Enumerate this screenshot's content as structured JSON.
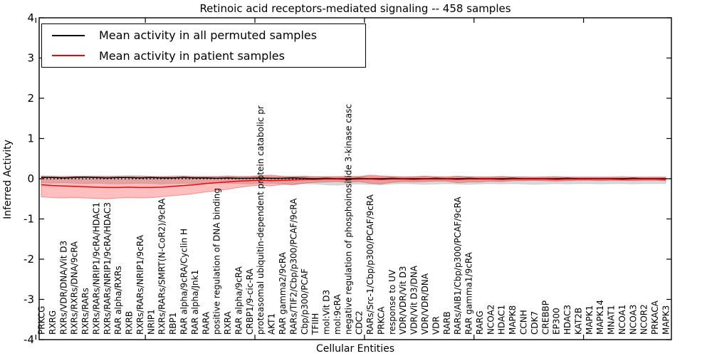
{
  "chart_data": {
    "type": "line",
    "title": "Retinoic acid receptors-mediated signaling -- 458 samples",
    "xlabel": "Cellular Entities",
    "ylabel": "Inferred Activity",
    "ylim": [
      -4,
      4
    ],
    "yticks": [
      4,
      3,
      2,
      1,
      0,
      -1,
      -2,
      -3,
      -4
    ],
    "grid": false,
    "legend_position": "upper left",
    "x_major_tick_every": 10,
    "categories": [
      "PRKCG",
      "RXRG",
      "RXRs/VDR/DNA/Vit D3",
      "RXRs/RXRs/DNA/9cRA",
      "RXRs/RARs",
      "RXRs/RARs/NRIP1/9cRA/HDAC1",
      "RXRs/RARs/NRIP1/9cRA/HDAC3",
      "RAR alpha/RXRs",
      "RXRB",
      "RXRs/RARs/NRIP1/9cRA",
      "NRIP1",
      "RXRs/RARs/SMRT(N-CoR2)/9cRA",
      "RBP1",
      "RAR alpha/9cRA/Cyclin H",
      "RAR alpha/Jnk1",
      "RARA",
      "positive regulation of DNA binding",
      "RXRA",
      "RAR alpha/9cRA",
      "CRBP1/9-cic-RA",
      "proteasomal ubiquitin-dependent protein catabolic pr",
      "AKT1",
      "RAR gamma2/9cRA",
      "RARs/TIF2/Cbp/p300/PCAF/9cRA",
      "Cbp/p300/PCAF",
      "TFIIH",
      "mol:Vit D3",
      "mol:9cRA",
      "negative regulation of phosphoinositide 3-kinase casc",
      "CDC2",
      "RARs/Src-1/Cbp/p300/PCAF/9cRA",
      "PRKCA",
      "response to UV",
      "VDR/VDR/Vit D3",
      "VDR/Vit D3/DNA",
      "VDR/VDR/DNA",
      "VDR",
      "RARB",
      "RARs/AIB1/Cbp/p300/PCAF/9cRA",
      "RAR gamma1/9cRA",
      "RARG",
      "NCOA2",
      "HDAC1",
      "MAPK8",
      "CCNH",
      "CDK7",
      "CREBBP",
      "EP300",
      "HDAC3",
      "KAT2B",
      "MAPK1",
      "MAPK14",
      "MNAT1",
      "NCOA1",
      "NCOA3",
      "NCOR2",
      "PRKACA",
      "MAPK3"
    ],
    "series": [
      {
        "name": "Mean activity in all permuted samples",
        "color": "#000000",
        "style": "solid",
        "values": [
          0.03,
          0.03,
          0.02,
          0.03,
          0.04,
          0.03,
          0.02,
          0.03,
          0.03,
          0.02,
          0.03,
          0.02,
          0.02,
          0.03,
          0.02,
          0.02,
          0.01,
          0.02,
          0.01,
          0.01,
          0.02,
          0.01,
          0.01,
          0.02,
          0.01,
          0.0,
          0.01,
          0.0,
          0.0,
          0.01,
          0.0,
          0.0,
          0.01,
          0.0,
          0.0,
          0.0,
          0.01,
          0.0,
          0.0,
          0.01,
          0.0,
          0.0,
          0.0,
          0.01,
          0.0,
          0.0,
          0.0,
          0.0,
          0.01,
          0.0,
          0.0,
          0.0,
          0.0,
          0.0,
          0.01,
          0.0,
          0.0,
          0.0
        ]
      },
      {
        "name": "Mean activity in patient samples",
        "color": "#ff0000",
        "style": "solid",
        "values": [
          -0.15,
          -0.17,
          -0.18,
          -0.19,
          -0.2,
          -0.21,
          -0.22,
          -0.22,
          -0.21,
          -0.22,
          -0.22,
          -0.21,
          -0.19,
          -0.17,
          -0.15,
          -0.12,
          -0.1,
          -0.08,
          -0.06,
          -0.05,
          -0.04,
          -0.05,
          -0.04,
          -0.03,
          -0.02,
          -0.02,
          -0.01,
          -0.01,
          -0.02,
          -0.01,
          -0.01,
          -0.02,
          -0.01,
          -0.01,
          -0.02,
          -0.01,
          -0.01,
          -0.01,
          -0.02,
          -0.01,
          -0.01,
          -0.01,
          -0.02,
          -0.01,
          -0.01,
          -0.01,
          -0.01,
          -0.02,
          -0.01,
          -0.01,
          -0.01,
          -0.01,
          -0.01,
          -0.02,
          -0.01,
          -0.01,
          -0.01,
          -0.02
        ]
      }
    ],
    "zero_line": {
      "style": "dashed",
      "color": "#000000",
      "value": 0
    },
    "bands": [
      {
        "name": "permuted samples range",
        "color": "#bfbfbf",
        "opacity": 0.6,
        "upper": [
          0.07,
          0.07,
          0.06,
          0.06,
          0.07,
          0.07,
          0.06,
          0.07,
          0.08,
          0.07,
          0.06,
          0.06,
          0.07,
          0.07,
          0.06,
          0.06,
          0.06,
          0.07,
          0.06,
          0.06,
          0.07,
          0.06,
          0.05,
          0.06,
          0.06,
          0.05,
          0.06,
          0.05,
          0.05,
          0.06,
          0.06,
          0.05,
          0.06,
          0.05,
          0.05,
          0.06,
          0.05,
          0.05,
          0.06,
          0.05,
          0.05,
          0.05,
          0.06,
          0.05,
          0.05,
          0.05,
          0.05,
          0.06,
          0.05,
          0.05,
          0.05,
          0.05,
          0.05,
          0.06,
          0.05,
          0.05,
          0.05,
          0.05
        ],
        "lower": [
          -0.1,
          -0.11,
          -0.1,
          -0.11,
          -0.12,
          -0.11,
          -0.12,
          -0.13,
          -0.12,
          -0.11,
          -0.12,
          -0.13,
          -0.12,
          -0.11,
          -0.12,
          -0.11,
          -0.1,
          -0.11,
          -0.12,
          -0.13,
          -0.12,
          -0.11,
          -0.13,
          -0.14,
          -0.12,
          -0.13,
          -0.15,
          -0.16,
          -0.14,
          -0.13,
          -0.14,
          -0.15,
          -0.13,
          -0.12,
          -0.13,
          -0.14,
          -0.13,
          -0.12,
          -0.13,
          -0.14,
          -0.13,
          -0.12,
          -0.13,
          -0.12,
          -0.13,
          -0.14,
          -0.13,
          -0.12,
          -0.13,
          -0.12,
          -0.12,
          -0.13,
          -0.12,
          -0.12,
          -0.13,
          -0.12,
          -0.12,
          -0.12
        ]
      },
      {
        "name": "patient samples range",
        "color": "#ff0000",
        "opacity": 0.25,
        "upper": [
          0.06,
          0.05,
          0.05,
          0.06,
          0.05,
          0.05,
          0.06,
          0.05,
          0.05,
          0.06,
          0.05,
          0.05,
          0.05,
          0.06,
          0.05,
          0.05,
          0.05,
          0.06,
          0.05,
          0.05,
          0.08,
          0.09,
          0.06,
          0.05,
          0.06,
          0.05,
          0.04,
          0.05,
          0.06,
          0.05,
          0.09,
          0.07,
          0.05,
          0.04,
          0.05,
          0.06,
          0.05,
          0.04,
          0.06,
          0.05,
          0.04,
          0.04,
          0.05,
          0.04,
          0.04,
          0.03,
          0.04,
          0.04,
          0.03,
          0.03,
          0.03,
          0.03,
          0.03,
          0.03,
          0.03,
          0.03,
          0.03,
          0.03
        ],
        "lower": [
          -0.45,
          -0.47,
          -0.48,
          -0.47,
          -0.48,
          -0.49,
          -0.5,
          -0.48,
          -0.47,
          -0.48,
          -0.47,
          -0.45,
          -0.42,
          -0.4,
          -0.37,
          -0.33,
          -0.3,
          -0.26,
          -0.22,
          -0.18,
          -0.16,
          -0.18,
          -0.14,
          -0.15,
          -0.11,
          -0.09,
          -0.08,
          -0.07,
          -0.09,
          -0.07,
          -0.11,
          -0.13,
          -0.09,
          -0.07,
          -0.08,
          -0.07,
          -0.06,
          -0.06,
          -0.1,
          -0.08,
          -0.08,
          -0.06,
          -0.07,
          -0.05,
          -0.05,
          -0.04,
          -0.05,
          -0.06,
          -0.05,
          -0.04,
          -0.04,
          -0.05,
          -0.04,
          -0.04,
          -0.05,
          -0.04,
          -0.04,
          -0.05
        ]
      }
    ]
  }
}
